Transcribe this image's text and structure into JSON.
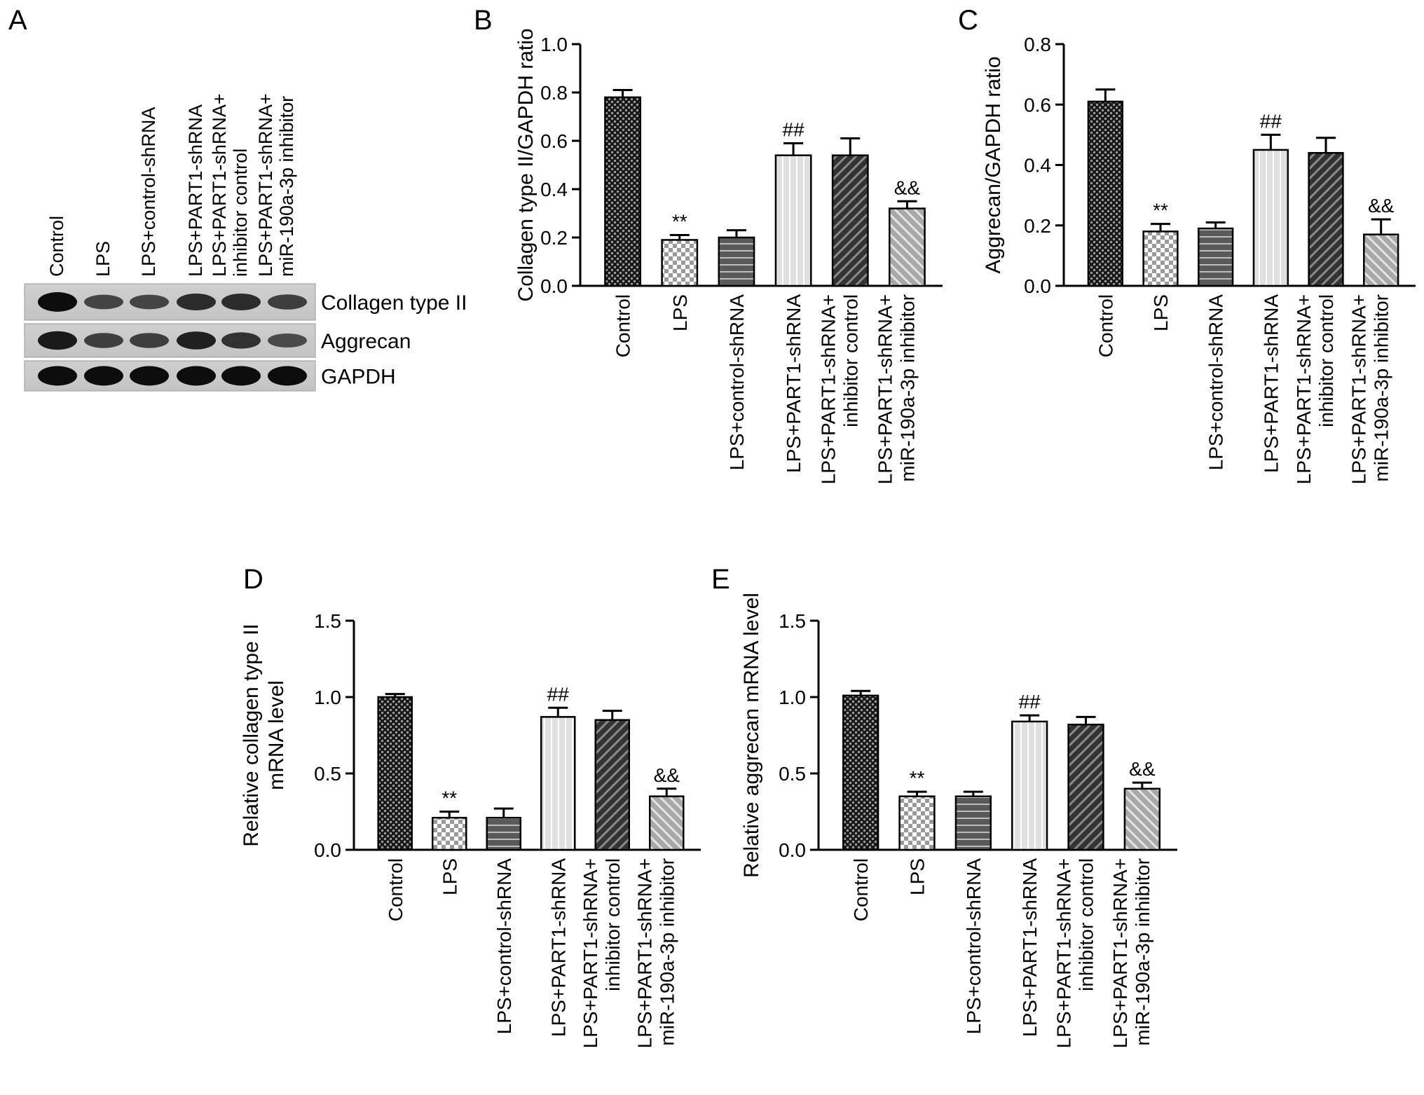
{
  "figure": {
    "panel_labels": [
      "A",
      "B",
      "C",
      "D",
      "E"
    ]
  },
  "blot": {
    "lanes": [
      [
        "Control"
      ],
      [
        "LPS"
      ],
      [
        "LPS+control-shRNA"
      ],
      [
        "LPS+PART1-shRNA"
      ],
      [
        "LPS+PART1-shRNA+",
        "inhibitor control"
      ],
      [
        "LPS+PART1-shRNA+",
        "miR-190a-3p inhibitor"
      ]
    ],
    "proteins": [
      "Collagen type II",
      "Aggrecan",
      "GAPDH"
    ],
    "band_intensity": [
      [
        1.0,
        0.55,
        0.55,
        0.75,
        0.75,
        0.6
      ],
      [
        0.9,
        0.6,
        0.6,
        0.85,
        0.7,
        0.5
      ],
      [
        1.0,
        1.0,
        1.0,
        1.0,
        1.0,
        1.0
      ]
    ]
  },
  "chart_data": [
    {
      "panel": "B",
      "type": "bar",
      "categories": [
        [
          "Control"
        ],
        [
          "LPS"
        ],
        [
          "LPS+control-shRNA"
        ],
        [
          "LPS+PART1-shRNA"
        ],
        [
          "LPS+PART1-shRNA+",
          "inhibitor control"
        ],
        [
          "LPS+PART1-shRNA+",
          "miR-190a-3p inhibitor"
        ]
      ],
      "values": [
        0.78,
        0.19,
        0.2,
        0.54,
        0.54,
        0.32
      ],
      "errors": [
        0.03,
        0.02,
        0.03,
        0.05,
        0.07,
        0.03
      ],
      "annotations": [
        "",
        "**",
        "",
        "##",
        "",
        "&&"
      ],
      "ylabel": [
        "Collagen type II/GAPDH ratio"
      ],
      "ylim": [
        0,
        1.0
      ],
      "yticks": [
        "0.0",
        "0.2",
        "0.4",
        "0.6",
        "0.8",
        "1.0"
      ],
      "grid": false
    },
    {
      "panel": "C",
      "type": "bar",
      "categories": [
        [
          "Control"
        ],
        [
          "LPS"
        ],
        [
          "LPS+control-shRNA"
        ],
        [
          "LPS+PART1-shRNA"
        ],
        [
          "LPS+PART1-shRNA+",
          "inhibitor control"
        ],
        [
          "LPS+PART1-shRNA+",
          "miR-190a-3p inhibitor"
        ]
      ],
      "values": [
        0.61,
        0.18,
        0.19,
        0.45,
        0.44,
        0.17
      ],
      "errors": [
        0.04,
        0.025,
        0.02,
        0.05,
        0.05,
        0.05
      ],
      "annotations": [
        "",
        "**",
        "",
        "##",
        "",
        "&&"
      ],
      "ylabel": [
        "Aggrecan/GAPDH ratio"
      ],
      "ylim": [
        0,
        0.8
      ],
      "yticks": [
        "0.0",
        "0.2",
        "0.4",
        "0.6",
        "0.8"
      ],
      "grid": false
    },
    {
      "panel": "D",
      "type": "bar",
      "categories": [
        [
          "Control"
        ],
        [
          "LPS"
        ],
        [
          "LPS+control-shRNA"
        ],
        [
          "LPS+PART1-shRNA"
        ],
        [
          "LPS+PART1-shRNA+",
          "inhibitor control"
        ],
        [
          "LPS+PART1-shRNA+",
          "miR-190a-3p inhibitor"
        ]
      ],
      "values": [
        1.0,
        0.21,
        0.21,
        0.87,
        0.85,
        0.35
      ],
      "errors": [
        0.02,
        0.04,
        0.06,
        0.06,
        0.06,
        0.05
      ],
      "annotations": [
        "",
        "**",
        "",
        "##",
        "",
        "&&"
      ],
      "ylabel": [
        "Relative collagen type II",
        "mRNA level"
      ],
      "ylim": [
        0,
        1.5
      ],
      "yticks": [
        "0.0",
        "0.5",
        "1.0",
        "1.5"
      ],
      "grid": false
    },
    {
      "panel": "E",
      "type": "bar",
      "categories": [
        [
          "Control"
        ],
        [
          "LPS"
        ],
        [
          "LPS+control-shRNA"
        ],
        [
          "LPS+PART1-shRNA"
        ],
        [
          "LPS+PART1-shRNA+",
          "inhibitor control"
        ],
        [
          "LPS+PART1-shRNA+",
          "miR-190a-3p inhibitor"
        ]
      ],
      "values": [
        1.01,
        0.35,
        0.35,
        0.84,
        0.82,
        0.4
      ],
      "errors": [
        0.03,
        0.03,
        0.03,
        0.04,
        0.05,
        0.04
      ],
      "annotations": [
        "",
        "**",
        "",
        "##",
        "",
        "&&"
      ],
      "ylabel": [
        "Relative aggrecan mRNA level"
      ],
      "ylim": [
        0,
        1.5
      ],
      "yticks": [
        "0.0",
        "0.5",
        "1.0",
        "1.5"
      ],
      "grid": false
    }
  ],
  "bar_styles": [
    {
      "name": "crosshatch-dense",
      "color": "#3a3a3a"
    },
    {
      "name": "checker-light",
      "color": "#c8c8c8"
    },
    {
      "name": "horizontal-stripes",
      "color": "#707070"
    },
    {
      "name": "vertical-stripes",
      "color": "#d2d2d2"
    },
    {
      "name": "diagonal-dark",
      "color": "#4a4a4a"
    },
    {
      "name": "diagonal-light",
      "color": "#a0a0a0"
    }
  ]
}
